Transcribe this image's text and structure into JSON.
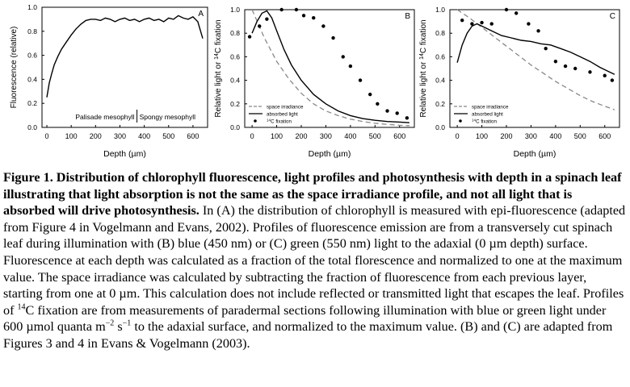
{
  "chart_data": [
    {
      "type": "line",
      "panel_letter": "A",
      "xlabel": "Depth (µm)",
      "ylabel": "Fluorescence (relative)",
      "xlim": [
        -20,
        660
      ],
      "ylim": [
        0,
        1.0
      ],
      "xticks": [
        0,
        100,
        200,
        300,
        400,
        500,
        600
      ],
      "yticks": [
        0.0,
        0.2,
        0.4,
        0.6,
        0.8,
        1.0
      ],
      "ytick_labels": [
        "0.0",
        "0.2",
        "0.4",
        "0.6",
        "0.8",
        "1.0"
      ],
      "annotations": {
        "left": "Palisade mesophyll",
        "right": "Spongy mesophyll",
        "divider_x": 370
      },
      "series": [
        {
          "style": "solid",
          "x": [
            0,
            10,
            20,
            30,
            45,
            60,
            80,
            100,
            120,
            140,
            160,
            180,
            200,
            220,
            240,
            260,
            280,
            300,
            320,
            340,
            360,
            380,
            400,
            420,
            440,
            460,
            480,
            500,
            520,
            540,
            560,
            580,
            600,
            620,
            640
          ],
          "y": [
            0.25,
            0.37,
            0.45,
            0.52,
            0.59,
            0.65,
            0.71,
            0.77,
            0.82,
            0.86,
            0.89,
            0.9,
            0.9,
            0.89,
            0.91,
            0.9,
            0.88,
            0.9,
            0.91,
            0.89,
            0.9,
            0.88,
            0.9,
            0.91,
            0.89,
            0.9,
            0.88,
            0.91,
            0.9,
            0.93,
            0.91,
            0.9,
            0.92,
            0.88,
            0.74
          ]
        }
      ]
    },
    {
      "type": "line",
      "panel_letter": "B",
      "xlabel": "Depth (µm)",
      "ylabel": "Relative light or ¹⁴C fixation",
      "xlim": [
        -30,
        660
      ],
      "ylim": [
        0,
        1.0
      ],
      "xticks": [
        0,
        100,
        200,
        300,
        400,
        500,
        600
      ],
      "yticks": [
        0.0,
        0.2,
        0.4,
        0.6,
        0.8,
        1.0
      ],
      "ytick_labels": [
        "0.0",
        "0.2",
        "0.4",
        "0.6",
        "0.8",
        "1.0"
      ],
      "legend": [
        "space irradiance",
        "absorbed light",
        "14C fixation"
      ],
      "series": [
        {
          "name": "space irradiance",
          "style": "dashed",
          "x": [
            0,
            50,
            100,
            150,
            200,
            250,
            300,
            350,
            400,
            450,
            500,
            550,
            600,
            640
          ],
          "y": [
            1.0,
            0.76,
            0.56,
            0.41,
            0.29,
            0.2,
            0.14,
            0.1,
            0.07,
            0.05,
            0.035,
            0.025,
            0.018,
            0.015
          ]
        },
        {
          "name": "absorbed light",
          "style": "solid",
          "x": [
            0,
            20,
            40,
            60,
            80,
            100,
            130,
            160,
            200,
            250,
            300,
            350,
            400,
            450,
            500,
            550,
            600,
            640
          ],
          "y": [
            0.8,
            0.9,
            0.97,
            0.99,
            0.93,
            0.82,
            0.66,
            0.53,
            0.4,
            0.28,
            0.2,
            0.14,
            0.1,
            0.075,
            0.06,
            0.05,
            0.045,
            0.04
          ]
        },
        {
          "name": "14C fixation",
          "style": "points",
          "x": [
            -10,
            30,
            60,
            120,
            180,
            210,
            250,
            290,
            330,
            370,
            400,
            440,
            480,
            510,
            550,
            590,
            630
          ],
          "y": [
            0.77,
            0.86,
            0.92,
            1.0,
            1.0,
            0.95,
            0.93,
            0.86,
            0.76,
            0.6,
            0.52,
            0.4,
            0.28,
            0.2,
            0.14,
            0.12,
            0.08
          ]
        }
      ]
    },
    {
      "type": "line",
      "panel_letter": "C",
      "xlabel": "Depth (µm)",
      "ylabel": "Relative light or ¹⁴C fixation",
      "xlim": [
        -30,
        660
      ],
      "ylim": [
        0,
        1.0
      ],
      "xticks": [
        0,
        100,
        200,
        300,
        400,
        500,
        600
      ],
      "yticks": [
        0.0,
        0.2,
        0.4,
        0.6,
        0.8,
        1.0
      ],
      "ytick_labels": [
        "0.0",
        "0.2",
        "0.4",
        "0.6",
        "0.8",
        "1.0"
      ],
      "legend": [
        "space irradiance",
        "absorbed light",
        "14C fixation"
      ],
      "series": [
        {
          "name": "space irradiance",
          "style": "dashed",
          "x": [
            0,
            50,
            100,
            150,
            200,
            250,
            300,
            350,
            400,
            450,
            500,
            550,
            600,
            640
          ],
          "y": [
            1.0,
            0.93,
            0.85,
            0.77,
            0.69,
            0.61,
            0.53,
            0.46,
            0.39,
            0.33,
            0.27,
            0.22,
            0.18,
            0.15
          ]
        },
        {
          "name": "absorbed light",
          "style": "solid",
          "x": [
            0,
            20,
            40,
            60,
            80,
            100,
            140,
            180,
            220,
            260,
            300,
            340,
            380,
            420,
            460,
            500,
            540,
            580,
            620,
            640
          ],
          "y": [
            0.55,
            0.7,
            0.8,
            0.86,
            0.88,
            0.86,
            0.82,
            0.78,
            0.76,
            0.74,
            0.73,
            0.71,
            0.7,
            0.67,
            0.64,
            0.6,
            0.56,
            0.51,
            0.47,
            0.45
          ]
        },
        {
          "name": "14C fixation",
          "style": "points",
          "x": [
            20,
            60,
            100,
            140,
            200,
            240,
            290,
            330,
            360,
            400,
            440,
            480,
            540,
            600,
            630
          ],
          "y": [
            0.91,
            0.88,
            0.89,
            0.88,
            1.0,
            0.97,
            0.88,
            0.82,
            0.67,
            0.56,
            0.52,
            0.5,
            0.47,
            0.44,
            0.4
          ]
        }
      ]
    }
  ],
  "caption": {
    "bold": "Figure 1. Distribution of chlorophyll fluorescence, light profiles and photosynthesis with depth in a spinach leaf illustrating that light absorption is not the same as the space irradiance profile, and not all light that is absorbed will drive photosynthesis.",
    "text1": " In (A) the distribution of chlorophyll is measured with epi-fluorescence (adapted from Figure 4 in Vogelmann and Evans, 2002). Profiles of fluorescence emission are from a transversely cut spinach leaf during illumination with (B) blue (450 nm) or (C) green (550 nm) light to the adaxial (0 µm depth) surface. Fluorescence at each depth was calculated as a fraction of the total florescence and normalized to one at the maximum value. The space irradiance was calculated by subtracting the fraction of fluorescence from each previous layer, starting from one at 0 µm. This calculation does not include reflected or transmitted light that escapes the leaf. Profiles of ",
    "sup1": "14",
    "text2": "C fixation are from measurements of paradermal sections following illumination with blue or green light under 600 µmol quanta m",
    "sup2": "−2",
    "text3": " s",
    "sup3": "−1",
    "text4": " to the adaxial surface, and normalized to the maximum value. (B) and (C) are adapted from Figures 3 and 4 in Evans & Vogelmann (2003)."
  }
}
